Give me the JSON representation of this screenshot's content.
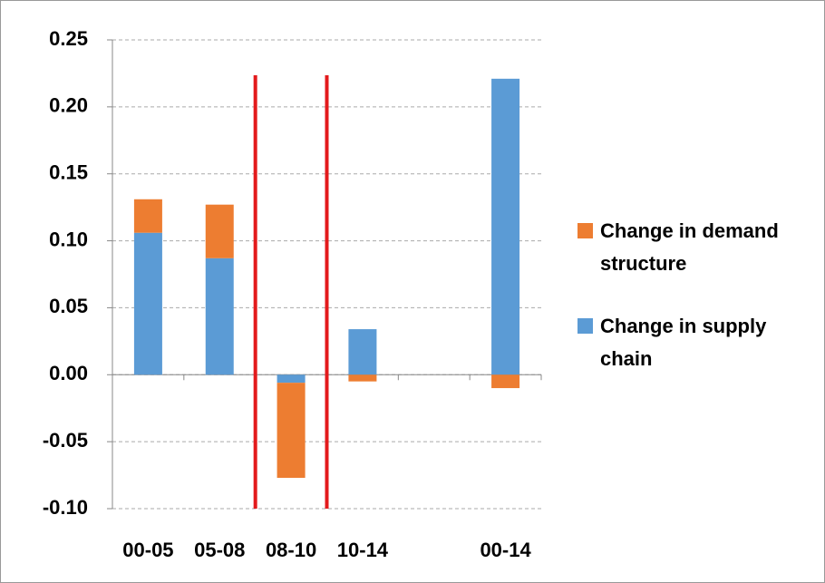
{
  "chart_data": {
    "type": "stacked_bar",
    "categories": [
      "00-05",
      "05-08",
      "08-10",
      "10-14",
      null,
      "00-14"
    ],
    "series": [
      {
        "name": "Change in supply chain",
        "color": "#5b9bd5",
        "values": [
          0.106,
          0.087,
          -0.006,
          0.034,
          null,
          0.221
        ]
      },
      {
        "name": "Change in demand structure",
        "color": "#ed7d31",
        "values": [
          0.025,
          0.04,
          -0.071,
          -0.005,
          null,
          -0.01
        ]
      }
    ],
    "ylim": [
      -0.1,
      0.25
    ],
    "yticks": [
      {
        "value": -0.1,
        "label": "-0.10"
      },
      {
        "value": -0.05,
        "label": "-0.05"
      },
      {
        "value": 0,
        "label": "0.00"
      },
      {
        "value": 0.05,
        "label": "0.05"
      },
      {
        "value": 0.1,
        "label": "0.10"
      },
      {
        "value": 0.15,
        "label": "0.15"
      },
      {
        "value": 0.2,
        "label": "0.20"
      },
      {
        "value": 0.25,
        "label": "0.25"
      }
    ],
    "grid": true,
    "legend": "right"
  }
}
